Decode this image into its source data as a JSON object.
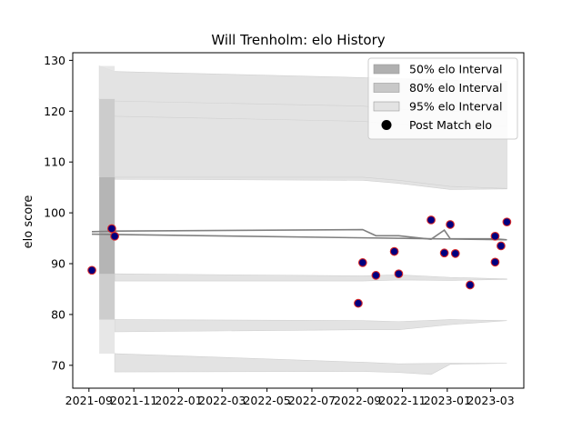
{
  "chart_data": {
    "type": "scatter",
    "title": "Will Trenholm: elo History",
    "xlabel": "",
    "ylabel": "elo score",
    "xlim": [
      "2021-08-10",
      "2023-04-15"
    ],
    "ylim": [
      65.5,
      131.5
    ],
    "x_ticks": [
      "2021-09",
      "2021-11",
      "2022-01",
      "2022-03",
      "2022-05",
      "2022-07",
      "2022-09",
      "2022-11",
      "2023-01",
      "2023-03"
    ],
    "y_ticks": [
      70,
      80,
      90,
      100,
      110,
      120,
      130
    ],
    "grid": false,
    "legend": {
      "position": "top-right",
      "entries": [
        "50% elo Interval",
        "80% elo Interval",
        "95% elo Interval",
        "Post Match elo"
      ]
    },
    "colors": {
      "band_50": "#b0b0b0",
      "band_80": "#c8c8c8",
      "band_95": "#e3e3e3",
      "line": "#808080",
      "marker_face": "#00007f",
      "marker_edge": "#d62728"
    },
    "post_match_elo": [
      {
        "x": "2021-09-05",
        "y": 88.7
      },
      {
        "x": "2021-10-02",
        "y": 96.9
      },
      {
        "x": "2021-10-06",
        "y": 95.4
      },
      {
        "x": "2022-09-02",
        "y": 82.2
      },
      {
        "x": "2022-09-08",
        "y": 90.2
      },
      {
        "x": "2022-09-26",
        "y": 87.7
      },
      {
        "x": "2022-10-21",
        "y": 92.4
      },
      {
        "x": "2022-10-27",
        "y": 88.0
      },
      {
        "x": "2022-12-10",
        "y": 98.6
      },
      {
        "x": "2022-12-28",
        "y": 92.1
      },
      {
        "x": "2023-01-05",
        "y": 97.7
      },
      {
        "x": "2023-01-12",
        "y": 92.0
      },
      {
        "x": "2023-02-01",
        "y": 85.8
      },
      {
        "x": "2023-03-07",
        "y": 90.3
      },
      {
        "x": "2023-03-07",
        "y": 95.4
      },
      {
        "x": "2023-03-15",
        "y": 93.5
      },
      {
        "x": "2023-03-23",
        "y": 98.2
      }
    ],
    "mean_line": [
      {
        "x": "2021-09-05",
        "y": 96.3
      },
      {
        "x": "2021-10-06",
        "y": 96.4
      },
      {
        "x": "2022-09-08",
        "y": 96.7
      },
      {
        "x": "2022-09-26",
        "y": 95.5
      },
      {
        "x": "2022-10-27",
        "y": 95.5
      },
      {
        "x": "2022-12-10",
        "y": 94.8
      },
      {
        "x": "2022-12-28",
        "y": 96.6
      },
      {
        "x": "2023-01-05",
        "y": 94.9
      },
      {
        "x": "2023-03-07",
        "y": 94.9
      },
      {
        "x": "2023-03-23",
        "y": 94.7
      }
    ],
    "interval_bands": [
      {
        "level": "95%",
        "side": "upper",
        "lower": [
          [
            "2021-09-15",
            107.2
          ],
          [
            "2021-10-06",
            106.8
          ],
          [
            "2022-09-08",
            106.9
          ],
          [
            "2022-10-27",
            105.8
          ],
          [
            "2023-01-05",
            104.9
          ],
          [
            "2023-03-23",
            104.8
          ]
        ],
        "upper": [
          [
            "2021-09-15",
            128.9
          ],
          [
            "2021-10-06",
            127.8
          ],
          [
            "2022-09-08",
            126.6
          ],
          [
            "2022-10-27",
            126.4
          ],
          [
            "2023-01-05",
            126.1
          ],
          [
            "2023-03-23",
            125.9
          ]
        ]
      },
      {
        "level": "95%",
        "side": "upper-inner",
        "lower": [
          [
            "2021-10-06",
            119.0
          ],
          [
            "2022-09-08",
            118.0
          ],
          [
            "2022-10-27",
            117.4
          ],
          [
            "2023-01-05",
            117.0
          ],
          [
            "2023-03-23",
            117.0
          ]
        ],
        "upper": [
          [
            "2021-09-15",
            122.4
          ],
          [
            "2021-10-06",
            122.0
          ],
          [
            "2022-09-08",
            121.0
          ],
          [
            "2022-10-27",
            120.4
          ],
          [
            "2023-01-05",
            120.0
          ],
          [
            "2023-03-23",
            120.0
          ]
        ]
      },
      {
        "level": "95%",
        "side": "mid-upper",
        "lower": [
          [
            "2021-10-06",
            106.6
          ],
          [
            "2022-09-08",
            106.4
          ],
          [
            "2022-10-27",
            105.8
          ],
          [
            "2023-01-05",
            104.6
          ],
          [
            "2023-03-23",
            104.7
          ]
        ],
        "upper": [
          [
            "2021-10-06",
            107.0
          ],
          [
            "2022-09-08",
            107.0
          ],
          [
            "2022-10-27",
            106.4
          ],
          [
            "2023-01-05",
            105.2
          ],
          [
            "2023-03-23",
            104.8
          ]
        ]
      },
      {
        "level": "95%",
        "side": "mid-lower",
        "lower": [
          [
            "2021-10-06",
            86.6
          ],
          [
            "2022-09-08",
            86.6
          ],
          [
            "2022-10-27",
            86.8
          ],
          [
            "2023-01-05",
            86.7
          ],
          [
            "2023-03-23",
            86.9
          ]
        ],
        "upper": [
          [
            "2021-10-06",
            88.0
          ],
          [
            "2022-09-08",
            87.6
          ],
          [
            "2022-10-27",
            87.8
          ],
          [
            "2023-01-05",
            87.3
          ],
          [
            "2023-03-23",
            87.0
          ]
        ]
      },
      {
        "level": "95%",
        "side": "lower-inner",
        "lower": [
          [
            "2021-10-06",
            76.6
          ],
          [
            "2022-09-08",
            77.0
          ],
          [
            "2022-10-27",
            77.0
          ],
          [
            "2023-01-05",
            78.0
          ],
          [
            "2023-03-23",
            78.8
          ]
        ],
        "upper": [
          [
            "2021-10-06",
            79.0
          ],
          [
            "2022-09-08",
            78.8
          ],
          [
            "2022-10-27",
            78.6
          ],
          [
            "2023-01-05",
            79.0
          ],
          [
            "2023-03-23",
            78.8
          ]
        ]
      },
      {
        "level": "95%",
        "side": "lower",
        "lower": [
          [
            "2021-10-06",
            68.7
          ],
          [
            "2022-09-08",
            68.8
          ],
          [
            "2022-10-27",
            68.6
          ],
          [
            "2022-12-10",
            68.2
          ],
          [
            "2023-01-05",
            70.2
          ],
          [
            "2023-03-23",
            70.4
          ]
        ],
        "upper": [
          [
            "2021-10-06",
            72.3
          ],
          [
            "2022-09-08",
            70.6
          ],
          [
            "2022-10-27",
            70.3
          ],
          [
            "2023-01-05",
            70.4
          ],
          [
            "2023-03-23",
            70.4
          ]
        ]
      }
    ],
    "initial_bands": [
      {
        "level": "95%",
        "x0": "2021-09-15",
        "x1": "2021-10-06",
        "lower": 72.3,
        "upper": 128.9
      },
      {
        "level": "80%",
        "x0": "2021-09-15",
        "x1": "2021-10-06",
        "lower": 79.0,
        "upper": 122.4
      },
      {
        "level": "50%",
        "x0": "2021-09-15",
        "x1": "2021-10-06",
        "lower": 88.0,
        "upper": 107.0
      }
    ]
  }
}
